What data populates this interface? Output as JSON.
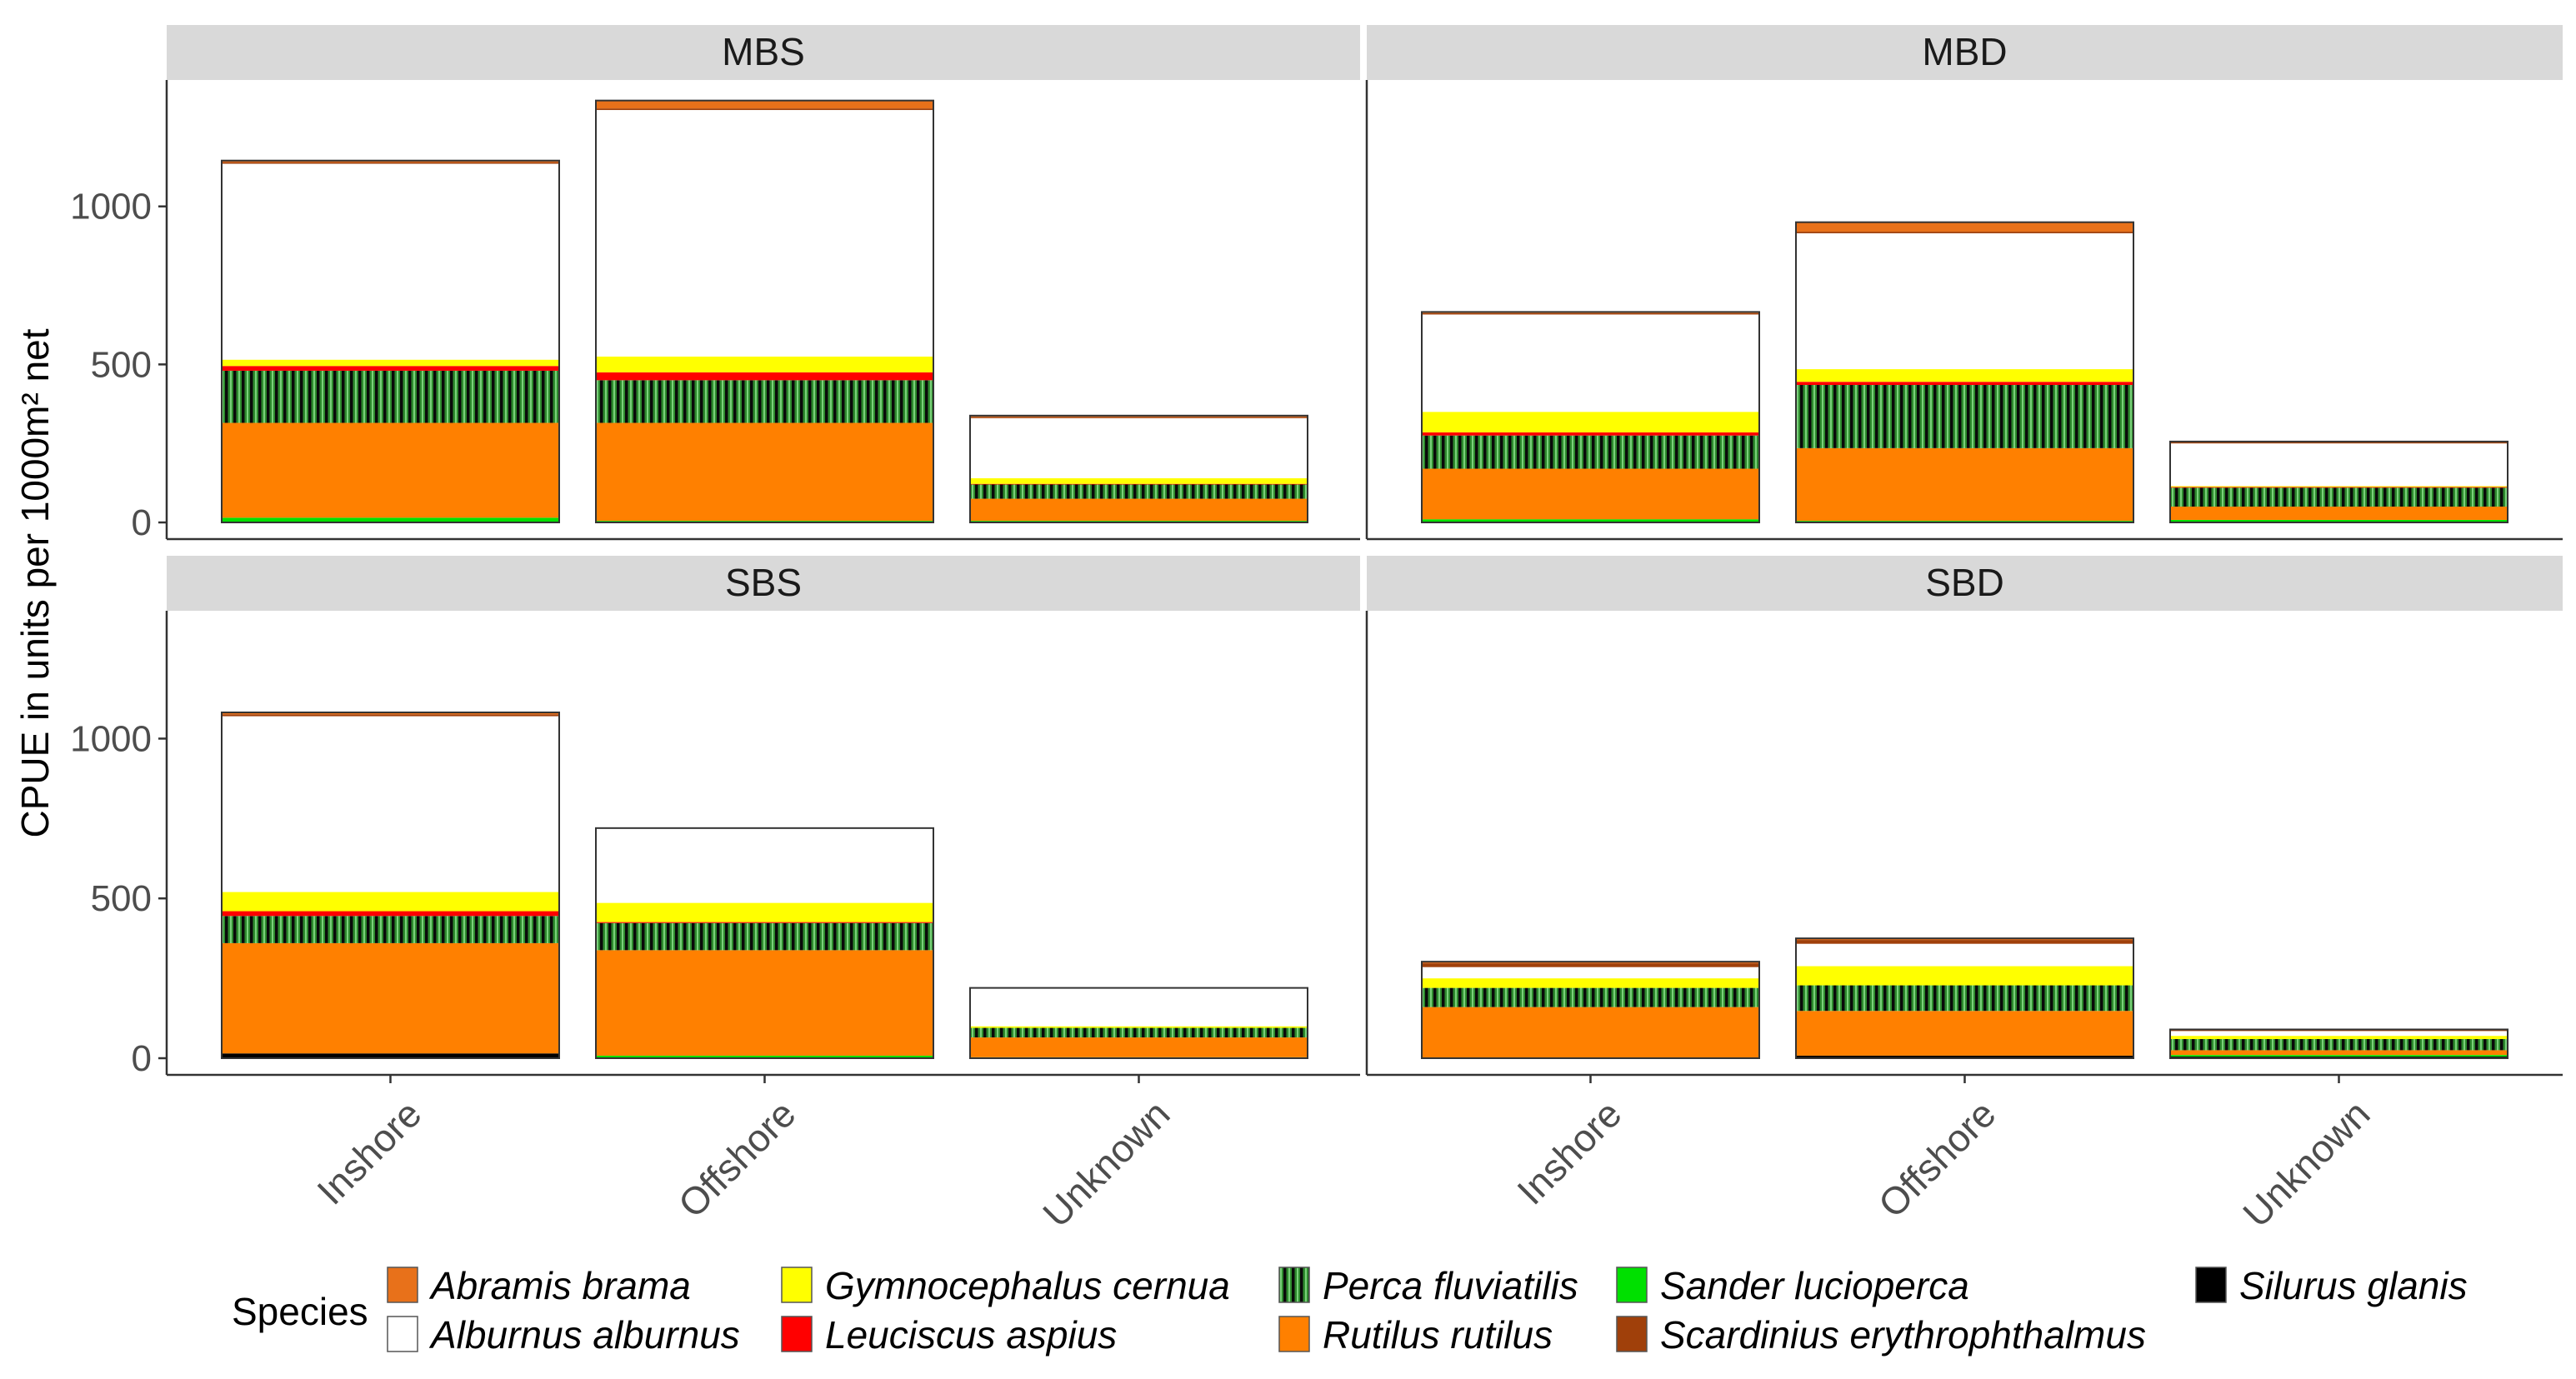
{
  "chart_data": {
    "type": "bar",
    "stacked": true,
    "facet_layout": "2x2",
    "ylabel": "CPUE in units per 1000m² net",
    "xlabel": "",
    "ylim": [
      0,
      1400
    ],
    "yticks": [
      0,
      500,
      1000
    ],
    "ytick_labels": [
      "0",
      "500",
      "1000"
    ],
    "categories": [
      "Inshore",
      "Offshore",
      "Unknown"
    ],
    "grid": false,
    "legend_position": "bottom",
    "legend": {
      "title": "Species",
      "items": [
        {
          "key": "abramis",
          "label": "Abramis brama",
          "color": "#E8711A",
          "pattern": "solid"
        },
        {
          "key": "alburnus",
          "label": "Alburnus alburnus",
          "color": "#FFFFFF",
          "pattern": "solid"
        },
        {
          "key": "gymnocephalus",
          "label": "Gymnocephalus cernua",
          "color": "#FFFF00",
          "pattern": "solid"
        },
        {
          "key": "leuciscus",
          "label": "Leuciscus aspius",
          "color": "#FF0000",
          "pattern": "solid"
        },
        {
          "key": "perca",
          "label": "Perca fluviatilis",
          "color": "#2E8B2E",
          "pattern": "vertical-stripes"
        },
        {
          "key": "rutilus",
          "label": "Rutilus rutilus",
          "color": "#FF8000",
          "pattern": "solid"
        },
        {
          "key": "sander",
          "label": "Sander lucioperca",
          "color": "#00E000",
          "pattern": "solid"
        },
        {
          "key": "scardinius",
          "label": "Scardinius erythrophthalmus",
          "color": "#A0400A",
          "pattern": "solid"
        },
        {
          "key": "silurus",
          "label": "Silurus glanis",
          "color": "#000000",
          "pattern": "solid"
        }
      ]
    },
    "stack_order": [
      "silurus",
      "sander",
      "rutilus",
      "perca",
      "leuciscus",
      "gymnocephalus",
      "alburnus",
      "scardinius",
      "abramis"
    ],
    "panels": [
      {
        "title": "MBS",
        "bars": [
          {
            "category": "Inshore",
            "segments": {
              "silurus": 0,
              "sander": 15,
              "rutilus": 300,
              "perca": 165,
              "leuciscus": 15,
              "gymnocephalus": 20,
              "alburnus": 620,
              "scardinius": 5,
              "abramis": 5
            }
          },
          {
            "category": "Offshore",
            "segments": {
              "silurus": 0,
              "sander": 5,
              "rutilus": 310,
              "perca": 135,
              "leuciscus": 25,
              "gymnocephalus": 50,
              "alburnus": 780,
              "scardinius": 5,
              "abramis": 25
            }
          },
          {
            "category": "Unknown",
            "segments": {
              "silurus": 0,
              "sander": 5,
              "rutilus": 70,
              "perca": 45,
              "leuciscus": 2,
              "gymnocephalus": 18,
              "alburnus": 190,
              "scardinius": 4,
              "abramis": 4
            }
          }
        ]
      },
      {
        "title": "MBD",
        "bars": [
          {
            "category": "Inshore",
            "segments": {
              "silurus": 0,
              "sander": 10,
              "rutilus": 160,
              "perca": 105,
              "leuciscus": 10,
              "gymnocephalus": 65,
              "alburnus": 308,
              "scardinius": 4,
              "abramis": 4
            }
          },
          {
            "category": "Offshore",
            "segments": {
              "silurus": 0,
              "sander": 5,
              "rutilus": 230,
              "perca": 200,
              "leuciscus": 10,
              "gymnocephalus": 40,
              "alburnus": 430,
              "scardinius": 5,
              "abramis": 30
            }
          },
          {
            "category": "Unknown",
            "segments": {
              "silurus": 0,
              "sander": 8,
              "rutilus": 42,
              "perca": 60,
              "leuciscus": 2,
              "gymnocephalus": 3,
              "alburnus": 135,
              "scardinius": 3,
              "abramis": 3
            }
          }
        ]
      },
      {
        "title": "SBS",
        "bars": [
          {
            "category": "Inshore",
            "segments": {
              "silurus": 15,
              "sander": 0,
              "rutilus": 345,
              "perca": 85,
              "leuciscus": 15,
              "gymnocephalus": 60,
              "alburnus": 550,
              "scardinius": 6,
              "abramis": 6
            }
          },
          {
            "category": "Offshore",
            "segments": {
              "silurus": 0,
              "sander": 8,
              "rutilus": 330,
              "perca": 85,
              "leuciscus": 3,
              "gymnocephalus": 60,
              "alburnus": 234,
              "scardinius": 0,
              "abramis": 0
            }
          },
          {
            "category": "Unknown",
            "segments": {
              "silurus": 0,
              "sander": 3,
              "rutilus": 62,
              "perca": 30,
              "leuciscus": 0,
              "gymnocephalus": 5,
              "alburnus": 120,
              "scardinius": 0,
              "abramis": 0
            }
          }
        ]
      },
      {
        "title": "SBD",
        "bars": [
          {
            "category": "Inshore",
            "segments": {
              "silurus": 0,
              "sander": 0,
              "rutilus": 160,
              "perca": 60,
              "leuciscus": 0,
              "gymnocephalus": 30,
              "alburnus": 35,
              "scardinius": 12,
              "abramis": 5
            }
          },
          {
            "category": "Offshore",
            "segments": {
              "silurus": 8,
              "sander": 0,
              "rutilus": 140,
              "perca": 80,
              "leuciscus": 0,
              "gymnocephalus": 60,
              "alburnus": 70,
              "scardinius": 12,
              "abramis": 5
            }
          },
          {
            "category": "Unknown",
            "segments": {
              "silurus": 5,
              "sander": 5,
              "rutilus": 15,
              "perca": 35,
              "leuciscus": 0,
              "gymnocephalus": 10,
              "alburnus": 15,
              "scardinius": 3,
              "abramis": 2
            }
          }
        ]
      }
    ]
  }
}
